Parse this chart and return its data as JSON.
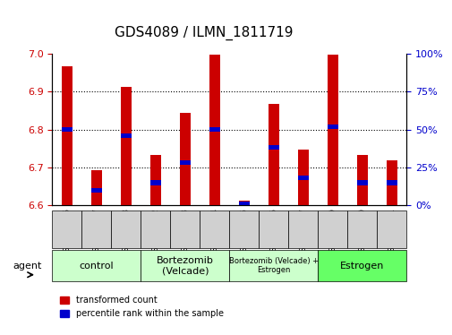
{
  "title": "GDS4089 / ILMN_1811719",
  "samples": [
    "GSM766676",
    "GSM766677",
    "GSM766678",
    "GSM766682",
    "GSM766683",
    "GSM766684",
    "GSM766685",
    "GSM766686",
    "GSM766687",
    "GSM766679",
    "GSM766680",
    "GSM766681"
  ],
  "transformed_count": [
    6.965,
    6.693,
    6.912,
    6.733,
    6.843,
    6.997,
    6.612,
    6.868,
    6.748,
    6.997,
    6.733,
    6.72
  ],
  "percentile_rank": [
    50,
    10,
    46,
    15,
    28,
    50,
    1,
    38,
    18,
    52,
    15,
    15
  ],
  "ylim_left": [
    6.6,
    7.0
  ],
  "ylim_right": [
    0,
    100
  ],
  "yticks_left": [
    6.6,
    6.7,
    6.8,
    6.9,
    7.0
  ],
  "yticks_right": [
    0,
    25,
    50,
    75,
    100
  ],
  "groups": [
    {
      "label": "control",
      "indices": [
        0,
        1,
        2
      ],
      "color": "#ccffcc"
    },
    {
      "label": "Bortezomib\n(Velcade)",
      "indices": [
        3,
        4,
        5
      ],
      "color": "#ccffcc"
    },
    {
      "label": "Bortezomib (Velcade) +\nEstrogen",
      "indices": [
        6,
        7,
        8
      ],
      "color": "#ccffcc"
    },
    {
      "label": "Estrogen",
      "indices": [
        9,
        10,
        11
      ],
      "color": "#66ff66"
    }
  ],
  "bar_color": "#cc0000",
  "marker_color": "#0000cc",
  "bar_width": 0.35,
  "agent_label": "agent",
  "legend_red": "transformed count",
  "legend_blue": "percentile rank within the sample",
  "left_axis_color": "#cc0000",
  "right_axis_color": "#0000cc",
  "grid_color": "#000000",
  "bg_color": "#ffffff",
  "plot_bg": "#ffffff"
}
